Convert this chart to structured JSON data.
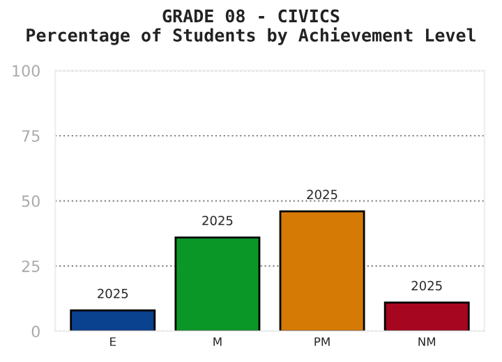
{
  "chart_data": {
    "type": "bar",
    "title": "GRADE 08 - CIVICS\nPercentage of Students by Achievement Level",
    "categories": [
      "E",
      "M",
      "PM",
      "NM"
    ],
    "values": [
      8,
      36,
      46,
      11
    ],
    "colors": [
      "#0b4290",
      "#0b9727",
      "#d67a06",
      "#a6061f"
    ],
    "ylim": [
      0,
      100
    ],
    "yticks": [
      0,
      25,
      50,
      75,
      100
    ],
    "grid": "y",
    "annotations": [
      {
        "text": "2025",
        "x": "E",
        "y": 8
      },
      {
        "text": "2025",
        "x": "M",
        "y": 36
      },
      {
        "text": "2025",
        "x": "PM",
        "y": 46
      },
      {
        "text": "2025",
        "x": "NM",
        "y": 11
      }
    ]
  }
}
